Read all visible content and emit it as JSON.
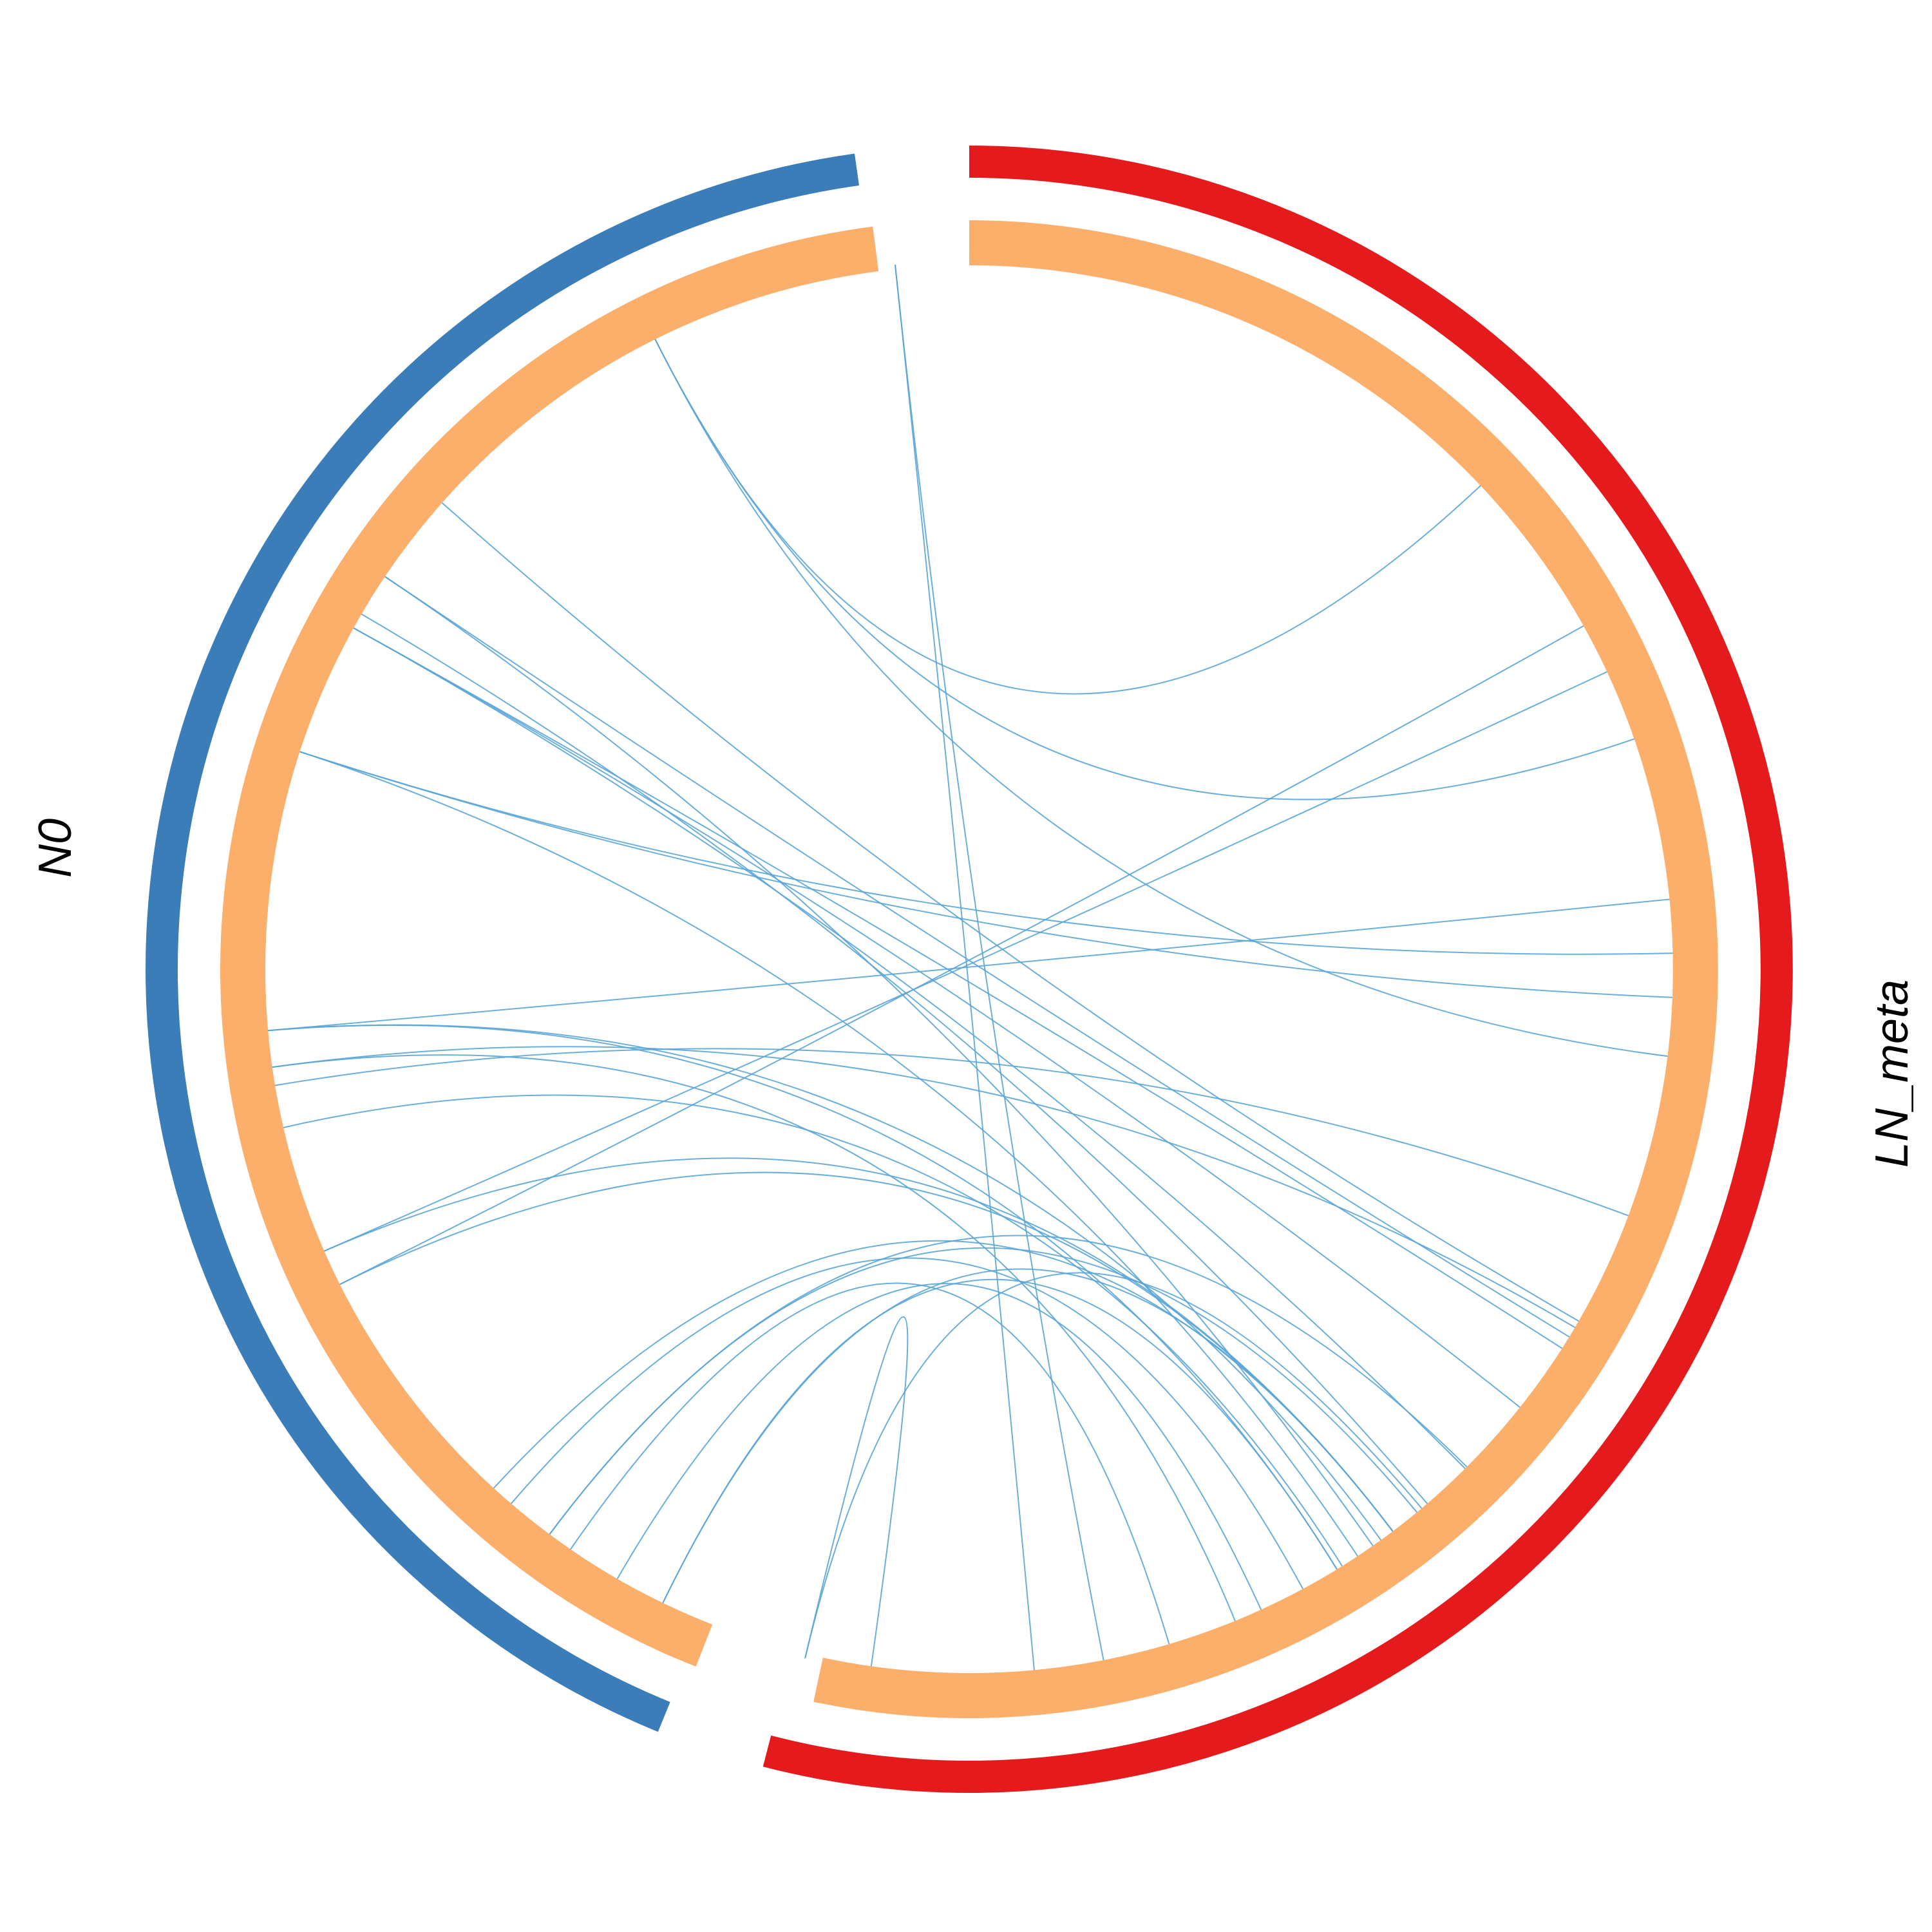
{
  "groups": [
    {
      "id": "N0",
      "label": "N0",
      "color": "#3a7db8"
    },
    {
      "id": "LN_meta",
      "label": "LN_meta",
      "color": "#e41a1c"
    }
  ],
  "inner_track_color": "#fcae6b",
  "link_color": "#5aa5d6",
  "links": [
    [
      -26.5,
      46.6
    ],
    [
      -26.5,
      70.9
    ],
    [
      -26.5,
      97.1
    ],
    [
      -56.1,
      121.5
    ],
    [
      -56.1,
      145.0
    ],
    [
      -59.7,
      139.4
    ],
    [
      -61.0,
      135.2
    ],
    [
      -61.0,
      128.5
    ],
    [
      -61.0,
      122.6
    ],
    [
      -72.0,
      88.7
    ],
    [
      -72.0,
      92.3
    ],
    [
      -72.0,
      146.5
    ],
    [
      -95.0,
      148.5
    ],
    [
      -95.0,
      144.2
    ],
    [
      -95.0,
      84.3
    ],
    [
      -98.0,
      120.6
    ],
    [
      -98.0,
      157.8
    ],
    [
      -99.5,
      110.5
    ],
    [
      -103.0,
      148.0
    ],
    [
      -113.6,
      143.0
    ],
    [
      -113.6,
      65.0
    ],
    [
      -116.6,
      143.0
    ],
    [
      -116.6,
      60.8
    ],
    [
      -143.4,
      140.5
    ],
    [
      -143.4,
      135.0
    ],
    [
      -145.5,
      163.5
    ],
    [
      -139.4,
      151.7
    ],
    [
      -137.5,
      143.0
    ],
    [
      -154.2,
      143.0
    ],
    [
      -154.2,
      148.5
    ],
    [
      -166.6,
      -172.0
    ],
    [
      -166.6,
      140.0
    ],
    [
      -6.0,
      169.0
    ],
    [
      -6.0,
      174.7
    ],
    [
      -48.5,
      120.0
    ],
    [
      -150.0,
      155.5
    ]
  ]
}
